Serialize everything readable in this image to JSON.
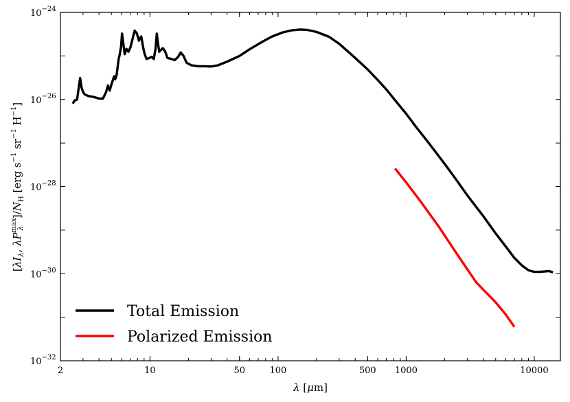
{
  "chart_data": {
    "type": "line",
    "title": "",
    "xlabel": "λ [μm]",
    "ylabel": "[λI_λ, λP_λ^max]/N_H [erg s^-1 sr^-1 H^-1]",
    "xscale": "log",
    "yscale": "log",
    "xlim": [
      2,
      16000
    ],
    "ylim": [
      1e-32,
      1e-24
    ],
    "x_major_ticks": [
      {
        "value": 2,
        "label": "2"
      },
      {
        "value": 10,
        "label": "10"
      },
      {
        "value": 50,
        "label": "50"
      },
      {
        "value": 100,
        "label": "100"
      },
      {
        "value": 500,
        "label": "500"
      },
      {
        "value": 1000,
        "label": "1000"
      },
      {
        "value": 10000,
        "label": "10000"
      }
    ],
    "y_major_ticks": [
      {
        "value": 1e-32,
        "base": "10",
        "exp": "−32"
      },
      {
        "value": 1e-30,
        "base": "10",
        "exp": "−30"
      },
      {
        "value": 1e-28,
        "base": "10",
        "exp": "−28"
      },
      {
        "value": 1e-26,
        "base": "10",
        "exp": "−26"
      },
      {
        "value": 1e-24,
        "base": "10",
        "exp": "−24"
      }
    ],
    "legend_position": "bottom-left",
    "series": [
      {
        "name": "Total Emission",
        "color": "#000000",
        "points": [
          [
            2.5,
            8e-27
          ],
          [
            2.55,
            9e-27
          ],
          [
            2.6,
            9.6e-27
          ],
          [
            2.7,
            1e-26
          ],
          [
            2.8,
            2.2e-26
          ],
          [
            2.85,
            3.1e-26
          ],
          [
            2.92,
            1.9e-26
          ],
          [
            3.0,
            1.5e-26
          ],
          [
            3.1,
            1.3e-26
          ],
          [
            3.3,
            1.2e-26
          ],
          [
            3.6,
            1.15e-26
          ],
          [
            4.0,
            1.05e-26
          ],
          [
            4.3,
            1.05e-26
          ],
          [
            4.55,
            1.5e-26
          ],
          [
            4.7,
            2.1e-26
          ],
          [
            4.85,
            1.6e-26
          ],
          [
            5.0,
            2.2e-26
          ],
          [
            5.25,
            3.4e-26
          ],
          [
            5.35,
            2.9e-26
          ],
          [
            5.5,
            3.7e-26
          ],
          [
            5.7,
            8.5e-26
          ],
          [
            5.8,
            1.05e-25
          ],
          [
            5.95,
            1.65e-25
          ],
          [
            6.05,
            3.25e-25
          ],
          [
            6.2,
            1.9e-25
          ],
          [
            6.35,
            1.1e-25
          ],
          [
            6.55,
            1.45e-25
          ],
          [
            6.8,
            1.25e-25
          ],
          [
            7.05,
            1.6e-25
          ],
          [
            7.35,
            2.6e-25
          ],
          [
            7.6,
            3.8e-25
          ],
          [
            7.9,
            3.3e-25
          ],
          [
            8.2,
            2.25e-25
          ],
          [
            8.55,
            2.8e-25
          ],
          [
            8.85,
            1.55e-25
          ],
          [
            9.1,
            1.1e-25
          ],
          [
            9.4,
            8.5e-26
          ],
          [
            9.9,
            9e-26
          ],
          [
            10.3,
            9.5e-26
          ],
          [
            10.7,
            8.5e-26
          ],
          [
            11.05,
            1.45e-25
          ],
          [
            11.3,
            3.25e-25
          ],
          [
            11.55,
            2e-25
          ],
          [
            11.8,
            1.25e-25
          ],
          [
            12.1,
            1.35e-25
          ],
          [
            12.6,
            1.5e-25
          ],
          [
            13.1,
            1.3e-25
          ],
          [
            13.7,
            9e-26
          ],
          [
            14.7,
            8.5e-26
          ],
          [
            15.6,
            8e-26
          ],
          [
            16.6,
            9.5e-26
          ],
          [
            17.4,
            1.2e-25
          ],
          [
            18.3,
            1e-25
          ],
          [
            19.3,
            7e-26
          ],
          [
            21,
            6.1e-26
          ],
          [
            24,
            5.8e-26
          ],
          [
            27,
            5.8e-26
          ],
          [
            30,
            5.7e-26
          ],
          [
            34,
            6.1e-26
          ],
          [
            40,
            7.4e-26
          ],
          [
            50,
            1e-25
          ],
          [
            60,
            1.42e-25
          ],
          [
            75,
            2.1e-25
          ],
          [
            90,
            2.8e-25
          ],
          [
            110,
            3.5e-25
          ],
          [
            130,
            3.9e-25
          ],
          [
            150,
            4.05e-25
          ],
          [
            170,
            3.95e-25
          ],
          [
            200,
            3.55e-25
          ],
          [
            250,
            2.75e-25
          ],
          [
            300,
            1.9e-25
          ],
          [
            400,
            9e-26
          ],
          [
            500,
            4.9e-26
          ],
          [
            600,
            2.8e-26
          ],
          [
            700,
            1.7e-26
          ],
          [
            800,
            1.05e-26
          ],
          [
            1000,
            4.7e-27
          ],
          [
            1200,
            2.3e-27
          ],
          [
            1500,
            1e-27
          ],
          [
            2000,
            3.3e-28
          ],
          [
            2500,
            1.35e-28
          ],
          [
            3000,
            6.3e-29
          ],
          [
            4000,
            2.1e-29
          ],
          [
            5000,
            8.4e-30
          ],
          [
            6000,
            4.2e-30
          ],
          [
            7000,
            2.3e-30
          ],
          [
            8000,
            1.55e-30
          ],
          [
            9000,
            1.2e-30
          ],
          [
            10000,
            1.1e-30
          ],
          [
            11000,
            1.1e-30
          ],
          [
            12000,
            1.12e-30
          ],
          [
            13000,
            1.15e-30
          ],
          [
            14000,
            1.07e-30
          ]
        ]
      },
      {
        "name": "Polarized Emission",
        "color": "#ff0000",
        "points": [
          [
            820,
            2.6e-28
          ],
          [
            1000,
            1.25e-28
          ],
          [
            1300,
            4.5e-29
          ],
          [
            1800,
            1.2e-29
          ],
          [
            2500,
            2.8e-30
          ],
          [
            3500,
            6.5e-31
          ],
          [
            4000,
            4.3e-31
          ],
          [
            5000,
            2.2e-31
          ],
          [
            6000,
            1.15e-31
          ],
          [
            7000,
            6e-32
          ]
        ]
      }
    ]
  }
}
